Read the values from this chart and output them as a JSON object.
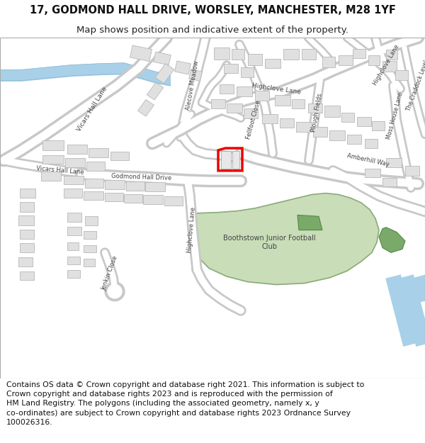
{
  "title": "17, GODMOND HALL DRIVE, WORSLEY, MANCHESTER, M28 1YF",
  "subtitle": "Map shows position and indicative extent of the property.",
  "footer": "Contains OS data © Crown copyright and database right 2021. This information is subject to Crown copyright and database rights 2023 and is reproduced with the permission of HM Land Registry. The polygons (including the associated geometry, namely x, y co-ordinates) are subject to Crown copyright and database rights 2023 Ordnance Survey 100026316.",
  "title_fontsize": 10.5,
  "subtitle_fontsize": 9.5,
  "footer_fontsize": 7.8,
  "fig_width": 6.0,
  "fig_height": 6.25,
  "bg_color": "#ffffff",
  "map_bg": "#ffffff",
  "road_fill": "#ffffff",
  "road_edge": "#c8c8c8",
  "building_fill": "#e0e0e0",
  "building_edge": "#b8b8b8",
  "green_light": "#c8ddb8",
  "green_dark": "#7aaa6a",
  "blue_color": "#a8d0e8",
  "highlight_red": "#ee0000",
  "label_color": "#444444",
  "label_size": 6.5
}
